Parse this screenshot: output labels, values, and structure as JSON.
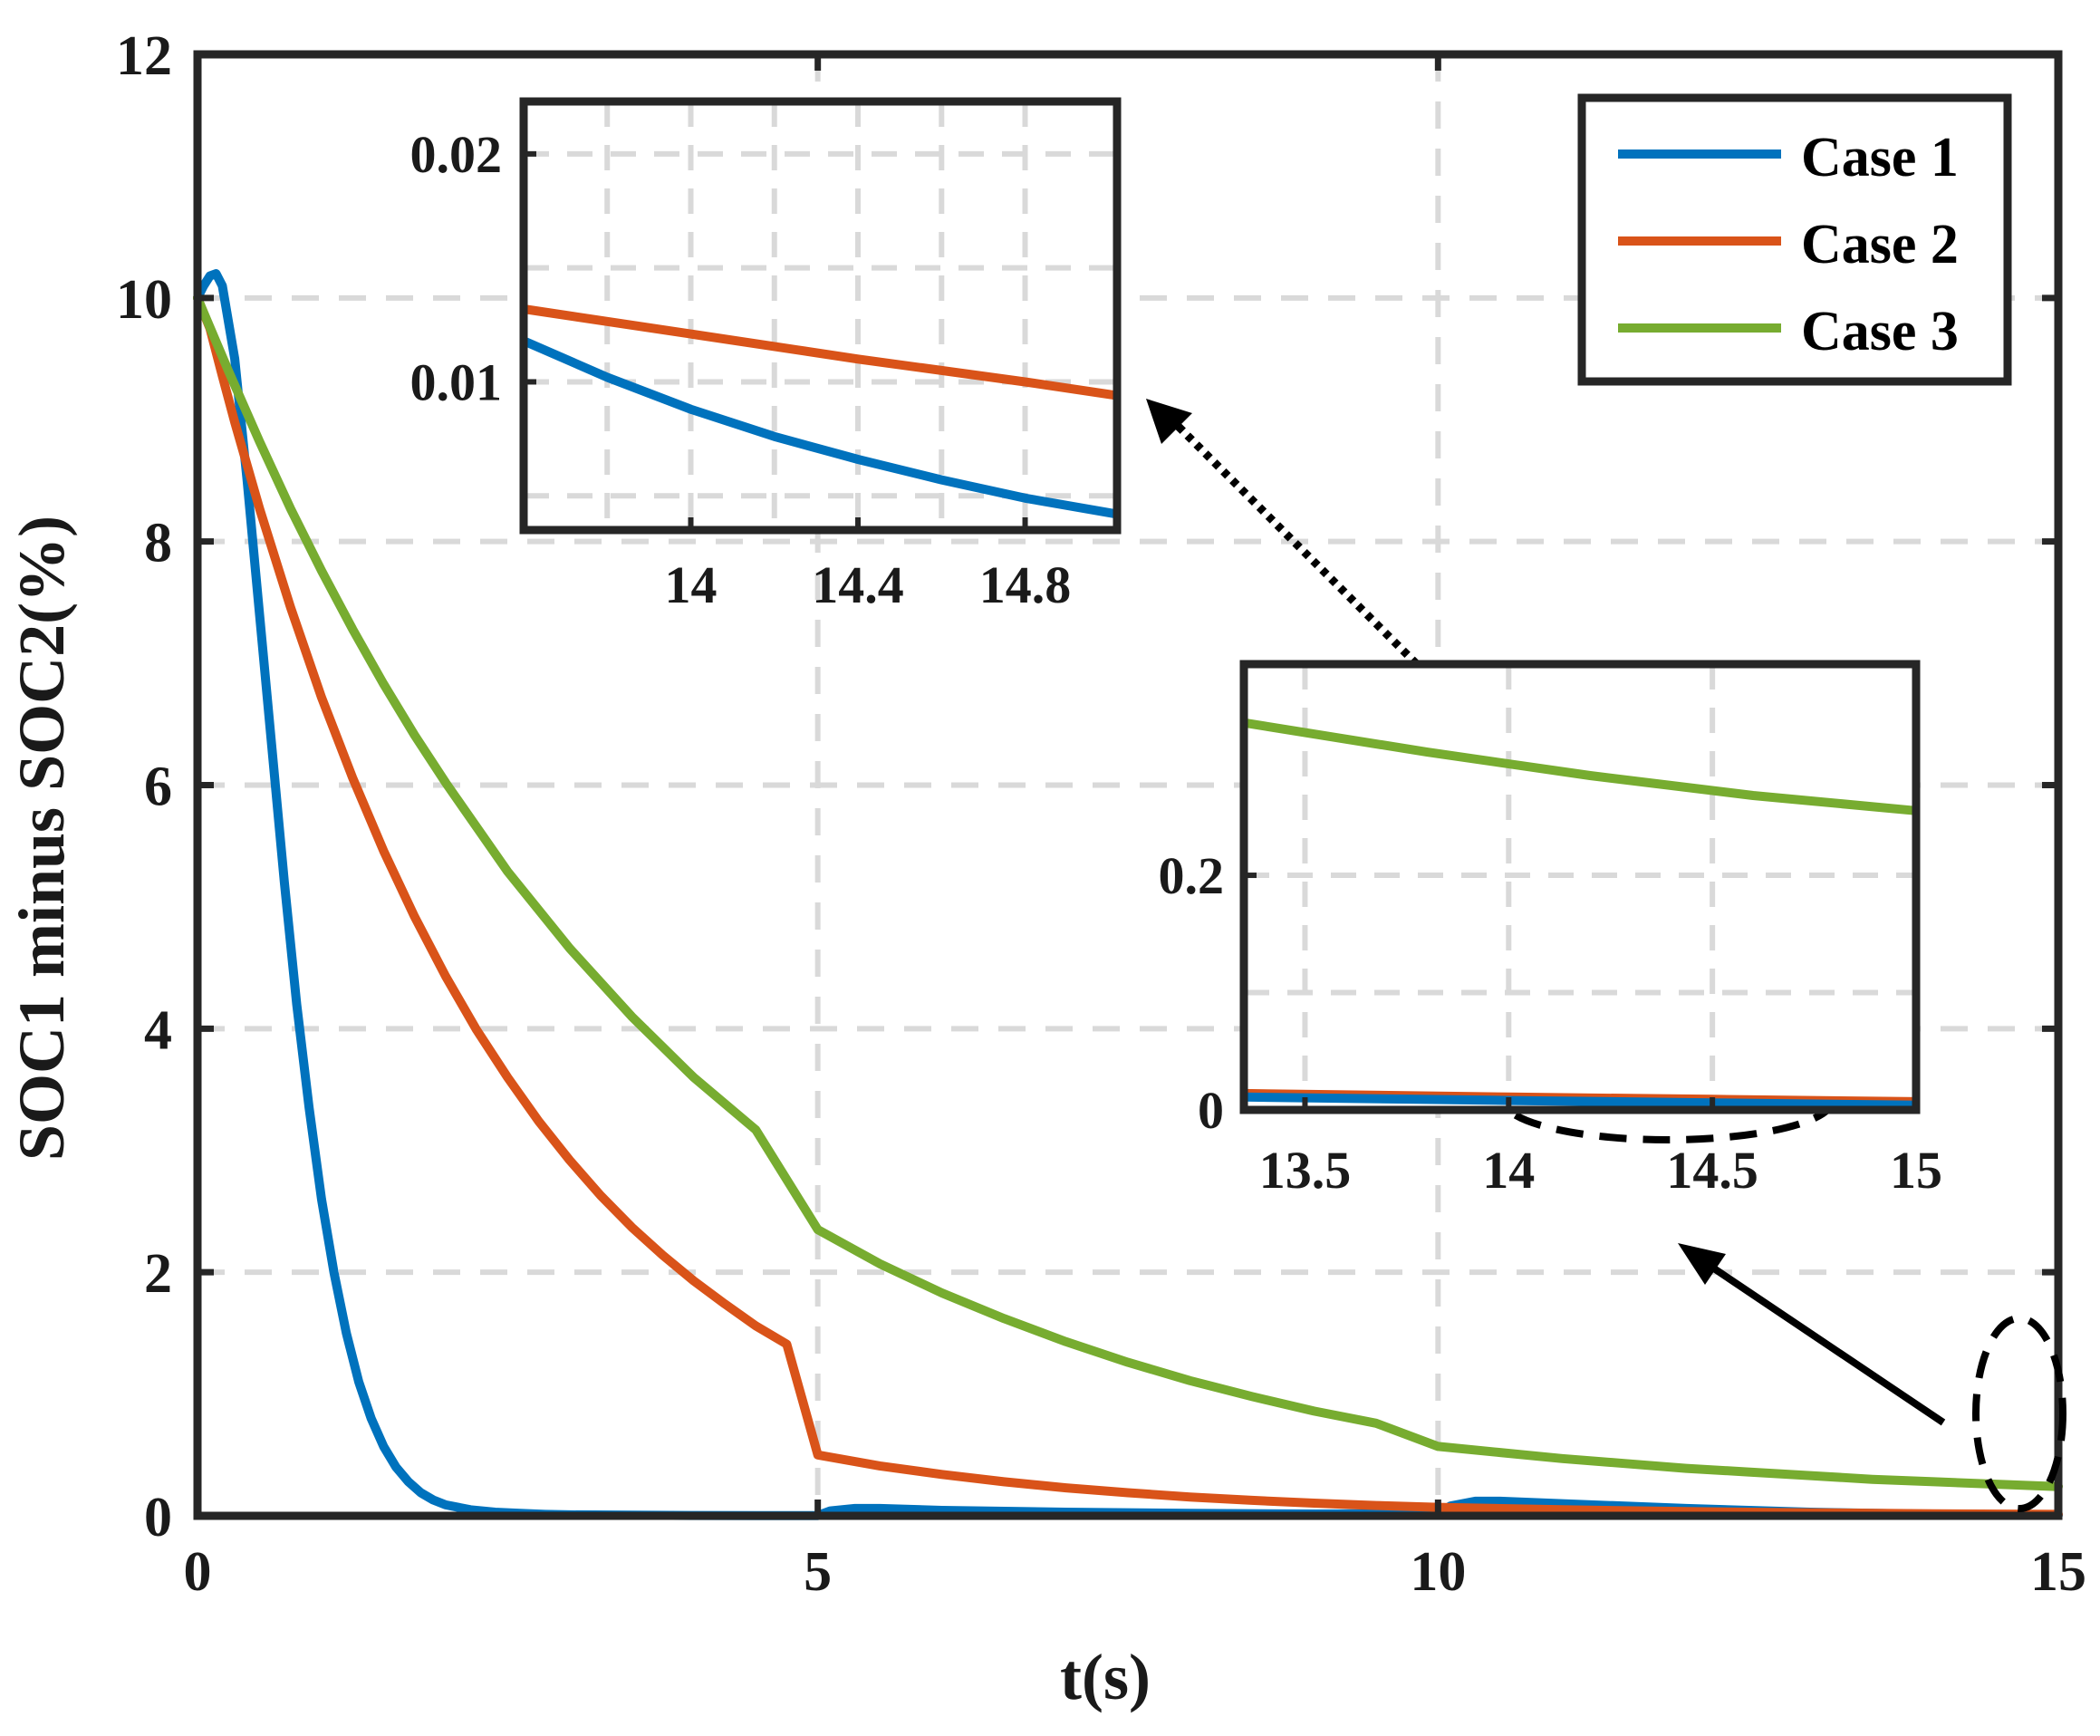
{
  "chart_data": {
    "type": "line",
    "xlabel": "t(s)",
    "ylabel": "SOC1 minus SOC2(%)",
    "xlim": [
      0,
      15
    ],
    "ylim": [
      0,
      12
    ],
    "xticks": [
      0,
      5,
      10,
      15
    ],
    "yticks": [
      0,
      2,
      4,
      6,
      8,
      10,
      12
    ],
    "grid": true,
    "legend_position": "top-right",
    "series": [
      {
        "name": "Case 1",
        "color": "#0072BD",
        "x": [
          0,
          0.05,
          0.1,
          0.15,
          0.2,
          0.3,
          0.4,
          0.5,
          0.6,
          0.7,
          0.8,
          0.9,
          1.0,
          1.1,
          1.2,
          1.3,
          1.4,
          1.5,
          1.6,
          1.7,
          1.8,
          1.9,
          2.0,
          2.2,
          2.4,
          2.6,
          2.8,
          3.0,
          3.5,
          4.0,
          4.5,
          5.0,
          5.1,
          5.3,
          5.5,
          6.0,
          7.0,
          8.0,
          9.0,
          10.0,
          10.1,
          10.3,
          10.5,
          11.0,
          12.0,
          13.0,
          14.0,
          14.5,
          15.0
        ],
        "y": [
          10.0,
          10.1,
          10.18,
          10.2,
          10.1,
          9.5,
          8.5,
          7.4,
          6.3,
          5.2,
          4.2,
          3.35,
          2.6,
          2.0,
          1.5,
          1.1,
          0.8,
          0.57,
          0.4,
          0.28,
          0.19,
          0.13,
          0.09,
          0.05,
          0.03,
          0.02,
          0.012,
          0.008,
          0.005,
          0.003,
          0.002,
          0.002,
          0.04,
          0.06,
          0.06,
          0.045,
          0.03,
          0.02,
          0.015,
          0.02,
          0.08,
          0.12,
          0.12,
          0.1,
          0.06,
          0.03,
          0.012,
          0.009,
          0.006
        ]
      },
      {
        "name": "Case 2",
        "color": "#D95319",
        "x": [
          0,
          0.1,
          0.2,
          0.3,
          0.5,
          0.75,
          1.0,
          1.25,
          1.5,
          1.75,
          2.0,
          2.25,
          2.5,
          2.75,
          3.0,
          3.25,
          3.5,
          3.75,
          4.0,
          4.25,
          4.5,
          4.75,
          5.0,
          5.5,
          6.0,
          6.5,
          7.0,
          7.5,
          8.0,
          8.5,
          9.0,
          9.5,
          10.0,
          11.0,
          12.0,
          13.0,
          14.0,
          15.0
        ],
        "y": [
          10.0,
          9.75,
          9.36,
          8.98,
          8.27,
          7.46,
          6.72,
          6.06,
          5.46,
          4.92,
          4.43,
          3.99,
          3.6,
          3.24,
          2.92,
          2.63,
          2.37,
          2.14,
          1.93,
          1.74,
          1.56,
          1.41,
          0.5,
          0.41,
          0.34,
          0.28,
          0.23,
          0.19,
          0.155,
          0.127,
          0.104,
          0.085,
          0.07,
          0.05,
          0.035,
          0.025,
          0.017,
          0.012
        ]
      },
      {
        "name": "Case 3",
        "color": "#77AC30",
        "x": [
          0,
          0.25,
          0.5,
          0.75,
          1.0,
          1.25,
          1.5,
          1.75,
          2.0,
          2.5,
          3.0,
          3.5,
          4.0,
          4.5,
          5.0,
          5.5,
          6.0,
          6.5,
          7.0,
          7.5,
          8.0,
          8.5,
          9.0,
          9.5,
          10.0,
          10.5,
          11.0,
          11.5,
          12.0,
          12.5,
          13.0,
          13.5,
          14.0,
          14.5,
          15.0
        ],
        "y": [
          10.0,
          9.4,
          8.82,
          8.27,
          7.76,
          7.28,
          6.83,
          6.41,
          6.02,
          5.29,
          4.66,
          4.1,
          3.6,
          3.17,
          2.35,
          2.07,
          1.83,
          1.62,
          1.43,
          1.26,
          1.11,
          0.98,
          0.86,
          0.76,
          0.57,
          0.52,
          0.47,
          0.43,
          0.39,
          0.36,
          0.33,
          0.3,
          0.28,
          0.26,
          0.24
        ]
      }
    ],
    "insets": [
      {
        "name": "inset-top",
        "xlim": [
          13.6,
          15.02
        ],
        "ylim": [
          0.0035,
          0.0223
        ],
        "xticks": [
          14,
          14.4,
          14.8
        ],
        "xtick_labels": [
          "14",
          "14.4",
          "14.8"
        ],
        "yticks": [
          0.01,
          0.02
        ],
        "ytick_labels": [
          "0.01",
          "0.02"
        ],
        "minor_xgrid": [
          13.8,
          14.2,
          14.6
        ],
        "minor_ygrid": [
          0.005,
          0.015
        ],
        "series": [
          {
            "name": "Case 1",
            "color": "#0072BD",
            "x": [
              13.6,
              13.8,
              14.0,
              14.2,
              14.4,
              14.6,
              14.8,
              15.02
            ],
            "y": [
              0.0118,
              0.0102,
              0.0088,
              0.0076,
              0.0066,
              0.0057,
              0.0049,
              0.0042
            ]
          },
          {
            "name": "Case 2",
            "color": "#D95319",
            "x": [
              13.6,
              14.0,
              14.4,
              14.8,
              15.02
            ],
            "y": [
              0.0132,
              0.0121,
              0.011,
              0.01,
              0.0094
            ]
          }
        ]
      },
      {
        "name": "inset-bottom",
        "xlim": [
          13.35,
          15.0
        ],
        "ylim": [
          0,
          0.38
        ],
        "xticks": [
          13.5,
          14,
          14.5,
          15
        ],
        "xtick_labels": [
          "13.5",
          "14",
          "14.5",
          "15"
        ],
        "yticks": [
          0,
          0.2
        ],
        "ytick_labels": [
          "0",
          "0.2"
        ],
        "minor_ygrid": [
          0.1
        ],
        "series": [
          {
            "name": "Case 3",
            "color": "#77AC30",
            "x": [
              13.35,
              13.8,
              14.2,
              14.6,
              15.0
            ],
            "y": [
              0.33,
              0.305,
              0.285,
              0.268,
              0.255
            ]
          },
          {
            "name": "Case 2",
            "color": "#D95319",
            "x": [
              13.35,
              14.0,
              14.5,
              15.0
            ],
            "y": [
              0.014,
              0.011,
              0.009,
              0.007
            ]
          },
          {
            "name": "Case 1",
            "color": "#0072BD",
            "x": [
              13.35,
              14.0,
              14.5,
              15.0
            ],
            "y": [
              0.011,
              0.008,
              0.006,
              0.004
            ]
          }
        ]
      }
    ]
  },
  "colors": {
    "frame": "#262626",
    "grid": "#d9d9d9",
    "annotation": "#000000"
  }
}
